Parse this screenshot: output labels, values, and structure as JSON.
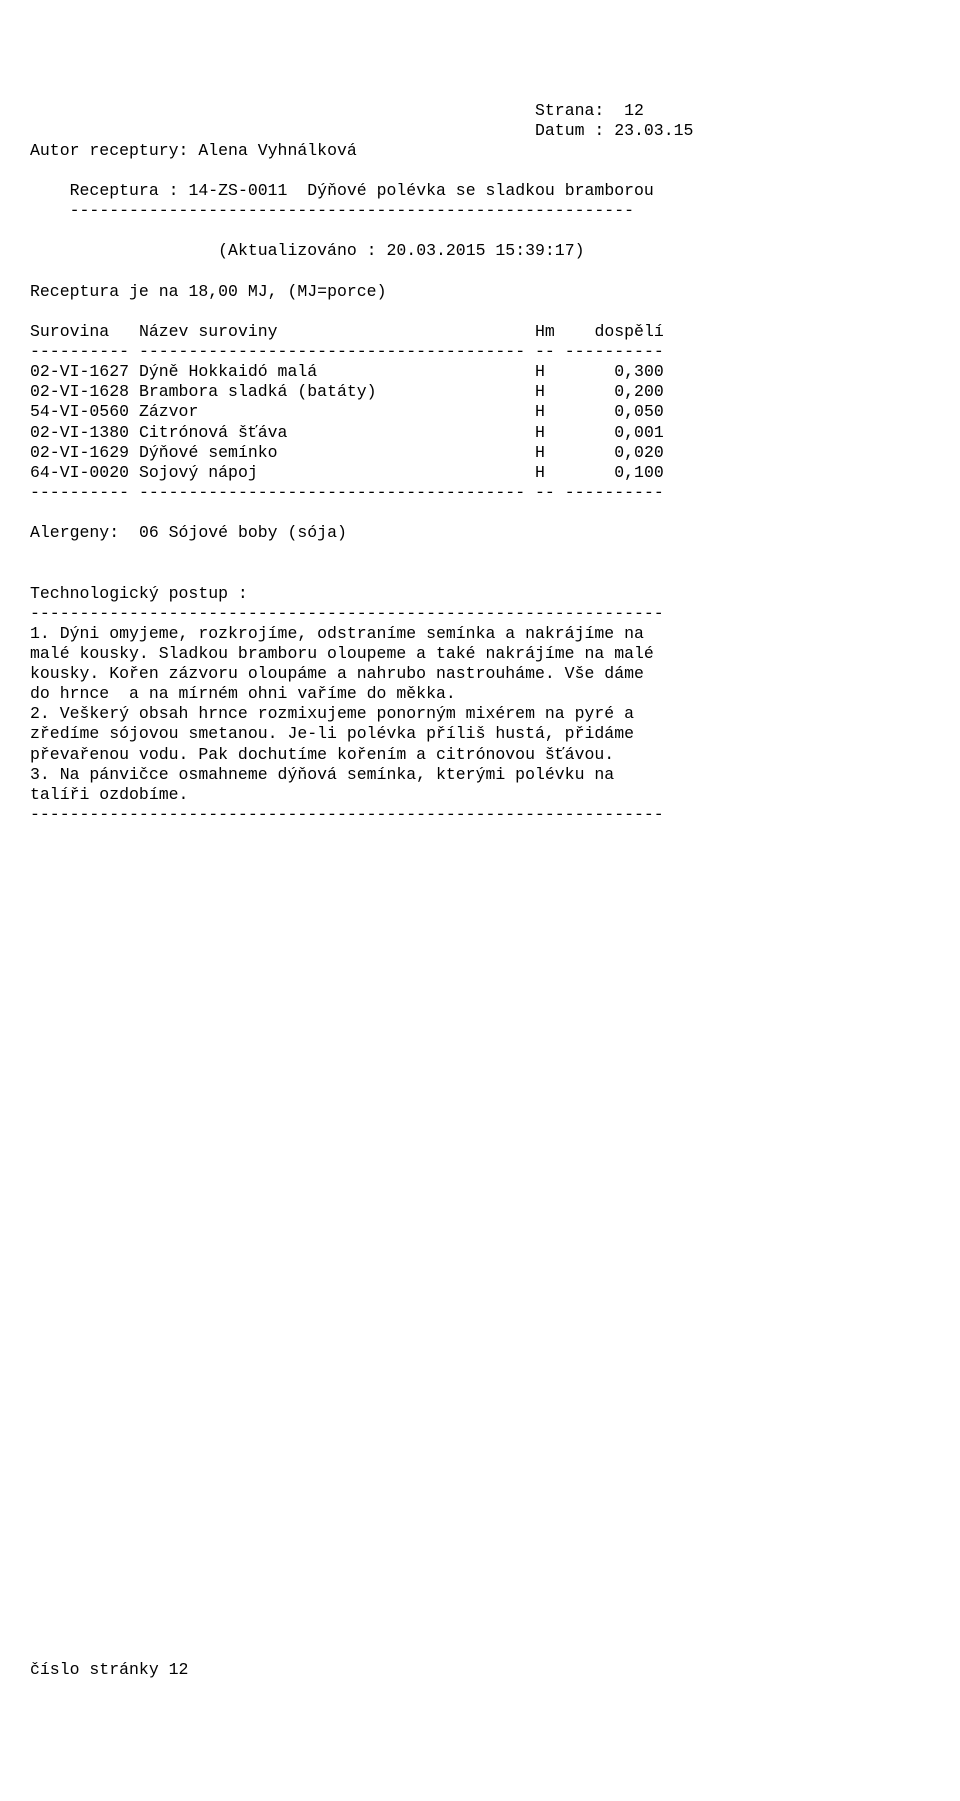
{
  "header": {
    "page_label": "Strana:",
    "page_num": "12",
    "date_label": "Datum :",
    "date_value": "23.03.15"
  },
  "author_label": "Autor receptury:",
  "author_name": "Alena Vyhnálková",
  "recipe_line_label": "Receptura :",
  "recipe_code": "14-ZS-0011",
  "recipe_title": "Dýňové polévka se sladkou bramborou",
  "divider_57": "---------------------------------------------------------",
  "updated_label": "(Aktualizováno :",
  "updated_value": "20.03.2015 15:39:17)",
  "portion_line_a": "Receptura je na",
  "portion_value": "18,00",
  "portion_line_b": "MJ, (MJ=porce)",
  "table": {
    "h1": "Surovina",
    "h2": "Název suroviny",
    "h3": "Hm",
    "h4": "dospělí",
    "rule_col1": "----------",
    "rule_col2": "---------------------------------------",
    "rule_col3": "--",
    "rule_col4": "----------",
    "rows": [
      {
        "code": "02-VI-1627",
        "name": "Dýně Hokkaidó malá",
        "hm": "H",
        "val": "0,300"
      },
      {
        "code": "02-VI-1628",
        "name": "Brambora sladká (batáty)",
        "hm": "H",
        "val": "0,200"
      },
      {
        "code": "54-VI-0560",
        "name": "Zázvor",
        "hm": "H",
        "val": "0,050"
      },
      {
        "code": "02-VI-1380",
        "name": "Citrónová šťáva",
        "hm": "H",
        "val": "0,001"
      },
      {
        "code": "02-VI-1629",
        "name": "Dýňové semínko",
        "hm": "H",
        "val": "0,020"
      },
      {
        "code": "64-VI-0020",
        "name": "Sojový nápoj",
        "hm": "H",
        "val": "0,100"
      }
    ]
  },
  "allergens_label": "Alergeny:",
  "allergens_value": "06 Sójové boby (sója)",
  "procedure_label": "Technologický postup :",
  "divider_64": "----------------------------------------------------------------",
  "procedure": {
    "p1l1": "1. Dýni omyjeme, rozkrojíme, odstraníme semínka a nakrájíme na",
    "p1l2": "malé kousky. Sladkou bramboru oloupeme a také nakrájíme na malé",
    "p1l3": "kousky. Kořen zázvoru oloupáme a nahrubo nastrouháme. Vše dáme",
    "p1l4": "do hrnce  a na mírném ohni vaříme do měkka.",
    "p2l1": "2. Veškerý obsah hrnce rozmixujeme ponorným mixérem na pyré a",
    "p2l2": "zředíme sójovou smetanou. Je-li polévka příliš hustá, přidáme",
    "p2l3": "převařenou vodu. Pak dochutíme kořením a citrónovou šťávou.",
    "p3l1": "3. Na pánvičce osmahneme dýňová semínka, kterými polévku na",
    "p3l2": "talíři ozdobíme."
  },
  "footer_label": "číslo stránky",
  "footer_num": "12"
}
